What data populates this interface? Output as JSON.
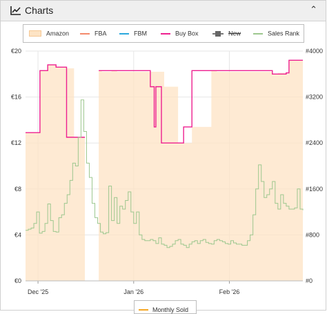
{
  "panel": {
    "title": "Charts",
    "icon": "line-chart-icon",
    "collapse_icon": "caret-up-icon"
  },
  "legend": [
    {
      "label": "Amazon",
      "color": "#fde3c4",
      "style": "area"
    },
    {
      "label": "FBA",
      "color": "#f4896b",
      "style": "line"
    },
    {
      "label": "FBM",
      "color": "#29a8dd",
      "style": "line"
    },
    {
      "label": "Buy Box",
      "color": "#ee1f8f",
      "style": "line"
    },
    {
      "label": "New",
      "color": "#666666",
      "style": "box-line",
      "disabled": true
    },
    {
      "label": "Sales Rank",
      "color": "#9cc78e",
      "style": "line"
    }
  ],
  "bottom_legend": {
    "label": "Monthly Sold",
    "color": "#f5a623"
  },
  "chart_data": {
    "type": "line",
    "x_ticks": [
      "Dec '25",
      "Jan '26",
      "Feb '26"
    ],
    "y_left": {
      "ticks": [
        "€0",
        "€4",
        "€8",
        "€12",
        "€16",
        "€20"
      ],
      "range": [
        0,
        20
      ]
    },
    "y_right": {
      "ticks": [
        "#0",
        "#800",
        "#1600",
        "#2400",
        "#3200",
        "#4000"
      ],
      "range": [
        0,
        4000
      ]
    },
    "x_range": [
      0,
      100
    ],
    "series": [
      {
        "name": "Amazon",
        "axis": "left",
        "style": "area",
        "x": [
          0,
          5.2,
          5.2,
          8,
          8,
          11,
          11,
          14.8,
          14.8,
          17.5,
          17.5,
          18.5,
          18.5,
          19.8,
          19.8,
          21.4,
          21.4,
          26.4,
          26.4,
          27.5,
          27.5,
          31,
          31,
          33,
          33,
          45,
          45,
          47,
          47,
          49,
          49,
          50,
          50,
          55,
          55,
          56.5,
          56.5,
          60,
          60,
          67,
          67,
          69,
          69,
          89,
          89,
          91,
          91,
          94,
          94,
          95,
          95,
          100
        ],
        "y": [
          12.9,
          12.9,
          18.3,
          18.3,
          18.8,
          18.8,
          18.6,
          18.6,
          18.5,
          18.5,
          12.5,
          12.5,
          12.5,
          12.5,
          12.5,
          12.5,
          0,
          0,
          18.3,
          18.3,
          18.2,
          18.2,
          18.3,
          18.3,
          18.2,
          18.2,
          18.2,
          18.2,
          18.2,
          18.2,
          18.2,
          18.2,
          16.9,
          16.9,
          12.0,
          12.0,
          12.0,
          12.0,
          13.4,
          13.4,
          18.3,
          18.3,
          18.2,
          18.2,
          18.0,
          18.0,
          18.1,
          18.1,
          18.0,
          18.0,
          19.2,
          19.2
        ]
      },
      {
        "name": "Buy Box",
        "axis": "left",
        "style": "step",
        "x": [
          0,
          5.2,
          5.2,
          8,
          8,
          11,
          11,
          14.8,
          14.8,
          21.4,
          21.4,
          26.4,
          26.4,
          45,
          45,
          46.4,
          46.4,
          47,
          47,
          49,
          49,
          57,
          57,
          60,
          60,
          89,
          89,
          94,
          94,
          95,
          95,
          100
        ],
        "y": [
          12.9,
          12.9,
          18.3,
          18.3,
          18.8,
          18.8,
          18.6,
          18.6,
          12.5,
          12.5,
          null,
          null,
          18.3,
          18.3,
          16.9,
          16.9,
          13.4,
          13.4,
          16.9,
          16.9,
          12.0,
          12.0,
          13.4,
          13.4,
          18.3,
          18.3,
          18.0,
          18.0,
          18.1,
          18.1,
          19.2,
          19.2
        ]
      },
      {
        "name": "Sales Rank",
        "axis": "right",
        "style": "step",
        "x": [
          0,
          1,
          2,
          3,
          4,
          5,
          6,
          7,
          8,
          9,
          10,
          11,
          12,
          13,
          14,
          15,
          16,
          17,
          18,
          19,
          20,
          21,
          22,
          23,
          24,
          25,
          26,
          27,
          28,
          29,
          30,
          31,
          32,
          33,
          34,
          35,
          36,
          37,
          38,
          39,
          40,
          41,
          42,
          43,
          44,
          45,
          46,
          47,
          48,
          49,
          50,
          51,
          52,
          53,
          54,
          55,
          56,
          57,
          58,
          59,
          60,
          61,
          62,
          63,
          64,
          65,
          66,
          67,
          68,
          69,
          70,
          71,
          72,
          73,
          74,
          75,
          76,
          77,
          78,
          79,
          80,
          81,
          82,
          83,
          84,
          85,
          86,
          87,
          88,
          89,
          90,
          91,
          92,
          93,
          94,
          95,
          96,
          97,
          98,
          99,
          100
        ],
        "y": [
          880,
          900,
          920,
          1000,
          1200,
          830,
          860,
          1000,
          1340,
          1050,
          860,
          850,
          1100,
          1150,
          1350,
          1500,
          1750,
          2050,
          2000,
          2500,
          3150,
          2600,
          2050,
          1800,
          1350,
          1100,
          1000,
          850,
          820,
          840,
          1650,
          1050,
          1450,
          1000,
          1300,
          1250,
          1400,
          1550,
          1200,
          1000,
          1200,
          800,
          720,
          700,
          700,
          720,
          700,
          650,
          750,
          640,
          620,
          580,
          600,
          640,
          700,
          720,
          640,
          620,
          580,
          640,
          680,
          700,
          650,
          700,
          720,
          670,
          650,
          640,
          700,
          720,
          700,
          680,
          650,
          640,
          700,
          660,
          640,
          640,
          620,
          620,
          700,
          800,
          1150,
          1600,
          2020,
          1730,
          1450,
          1500,
          1600,
          1730,
          1350,
          1250,
          1500,
          1350,
          1300,
          1250,
          1250,
          1270,
          1600,
          1250,
          1230
        ]
      }
    ],
    "grid": true,
    "legend_position": "top"
  }
}
